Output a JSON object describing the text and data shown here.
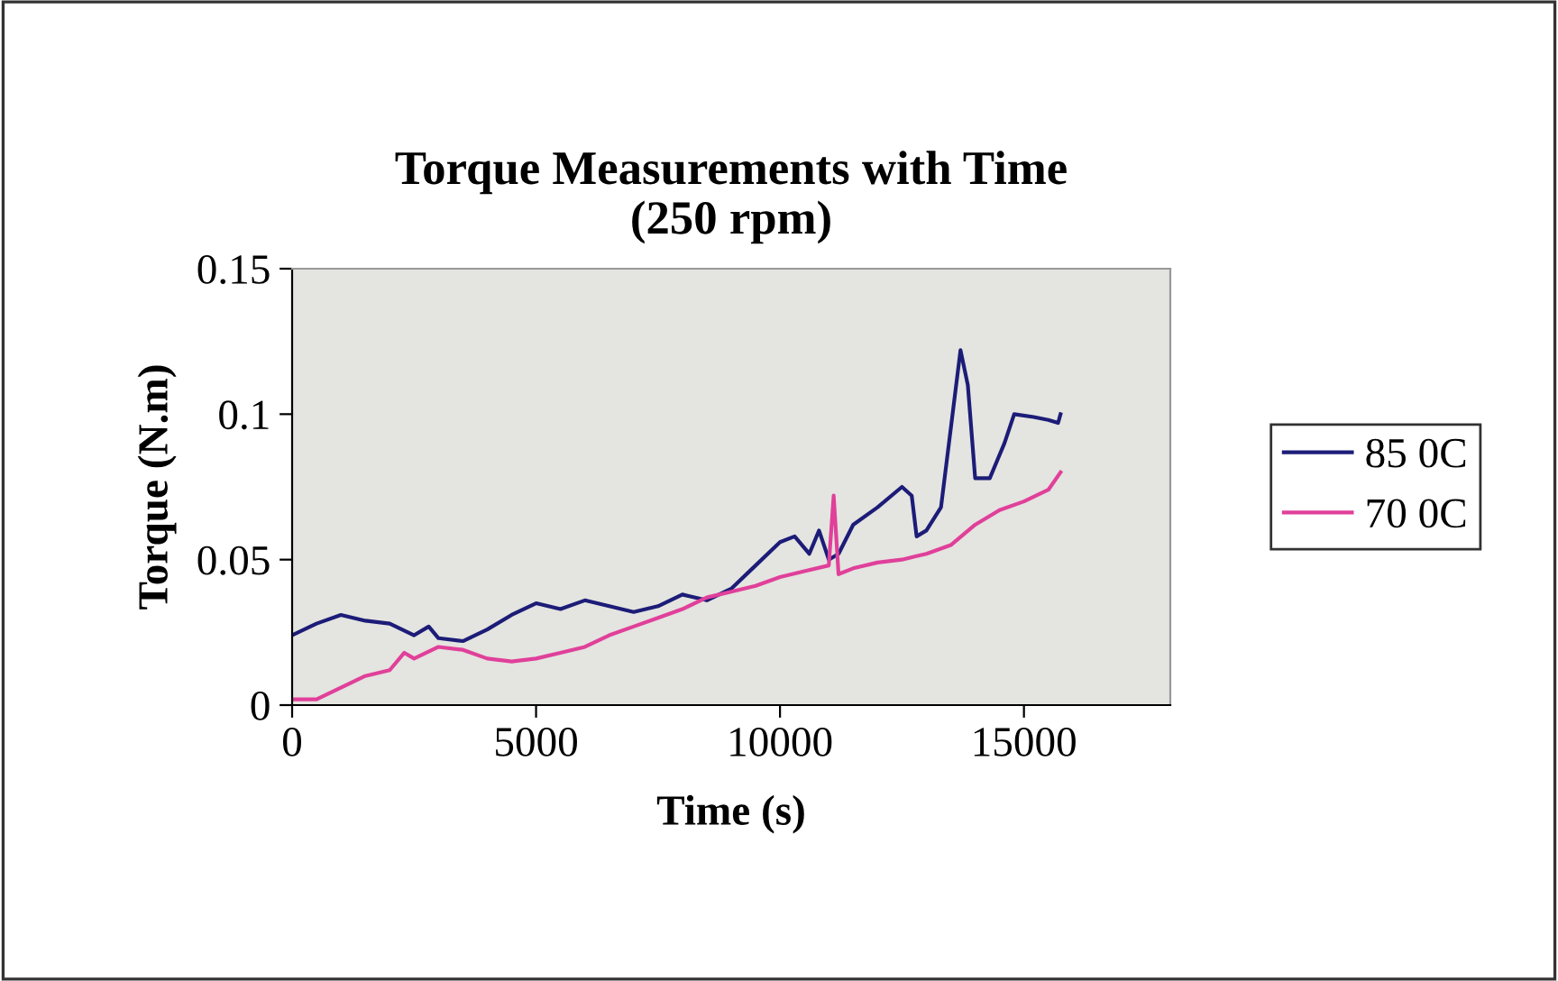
{
  "chart_data": {
    "type": "line",
    "title": "Torque Measurements with Time\n(250 rpm)",
    "xlabel": "Time (s)",
    "ylabel": "Torque (N.m)",
    "xlim": [
      0,
      18000
    ],
    "xticks": [
      0,
      5000,
      10000,
      15000
    ],
    "ylim": [
      0,
      0.15
    ],
    "yticks": [
      0,
      0.05,
      0.1,
      0.15
    ],
    "grid": false,
    "legend": "right",
    "marker": "none",
    "line_style": "solid",
    "series": [
      {
        "name": "85 0C",
        "color": "#1c1c78",
        "x": [
          0,
          500,
          1000,
          1500,
          2000,
          2500,
          2800,
          3000,
          3500,
          4000,
          4500,
          5000,
          5500,
          6000,
          6500,
          7000,
          7500,
          8000,
          8500,
          9000,
          9500,
          10000,
          10300,
          10600,
          10800,
          11000,
          11200,
          11500,
          12000,
          12500,
          12700,
          12800,
          13000,
          13300,
          13500,
          13700,
          13850,
          14000,
          14300,
          14600,
          14800,
          15200,
          15500,
          15700,
          15750
        ],
        "values": [
          0.024,
          0.028,
          0.031,
          0.029,
          0.028,
          0.024,
          0.027,
          0.023,
          0.022,
          0.026,
          0.031,
          0.035,
          0.033,
          0.036,
          0.034,
          0.032,
          0.034,
          0.038,
          0.036,
          0.04,
          0.048,
          0.056,
          0.058,
          0.052,
          0.06,
          0.05,
          0.052,
          0.062,
          0.068,
          0.075,
          0.072,
          0.058,
          0.06,
          0.068,
          0.095,
          0.122,
          0.11,
          0.078,
          0.078,
          0.09,
          0.1,
          0.099,
          0.098,
          0.097,
          0.1
        ]
      },
      {
        "name": "70 0C",
        "color": "#e0409a",
        "x": [
          0,
          500,
          1000,
          1500,
          2000,
          2300,
          2500,
          3000,
          3500,
          4000,
          4500,
          5000,
          5500,
          6000,
          6500,
          7000,
          7500,
          8000,
          8500,
          9000,
          9500,
          10000,
          10500,
          11000,
          11100,
          11200,
          11500,
          12000,
          12500,
          13000,
          13500,
          14000,
          14500,
          15000,
          15500,
          15750
        ],
        "values": [
          0.002,
          0.002,
          0.006,
          0.01,
          0.012,
          0.018,
          0.016,
          0.02,
          0.019,
          0.016,
          0.015,
          0.016,
          0.018,
          0.02,
          0.024,
          0.027,
          0.03,
          0.033,
          0.037,
          0.039,
          0.041,
          0.044,
          0.046,
          0.048,
          0.072,
          0.045,
          0.047,
          0.049,
          0.05,
          0.052,
          0.055,
          0.062,
          0.067,
          0.07,
          0.074,
          0.08
        ]
      }
    ]
  }
}
